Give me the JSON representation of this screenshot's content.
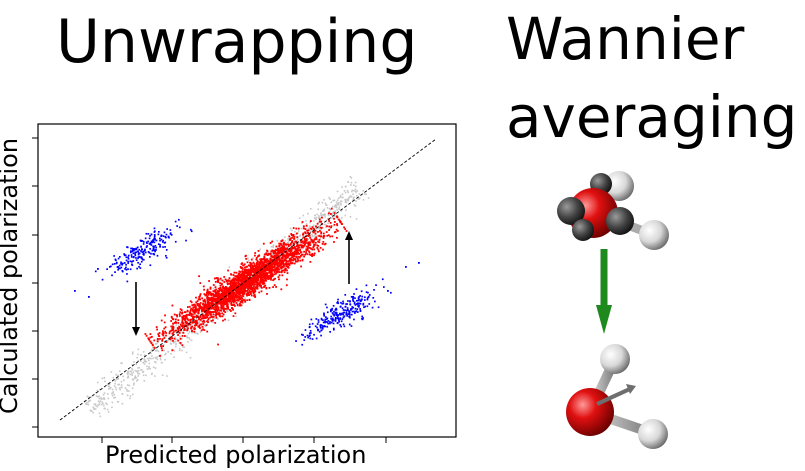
{
  "titles": {
    "left": "Unwrapping",
    "right_line1": "Wannier",
    "right_line2": "averaging"
  },
  "chart_data": {
    "type": "scatter",
    "xlabel": "Predicted polarization",
    "ylabel": "Calculated polarization",
    "series": [
      {
        "color": "#c8c8c8",
        "role": "background points"
      },
      {
        "color": "#ff0000",
        "role": "main points"
      },
      {
        "color": "#0000ff",
        "role": "wrapped points"
      }
    ],
    "reference_line": "y = x (dashed)",
    "arrows": [
      "down (left cluster)",
      "up (right cluster)"
    ]
  },
  "molecules": {
    "top": "water molecule with Wannier centers",
    "bottom": "water molecule with dipole",
    "arrow_color": "#1e8a1e"
  }
}
